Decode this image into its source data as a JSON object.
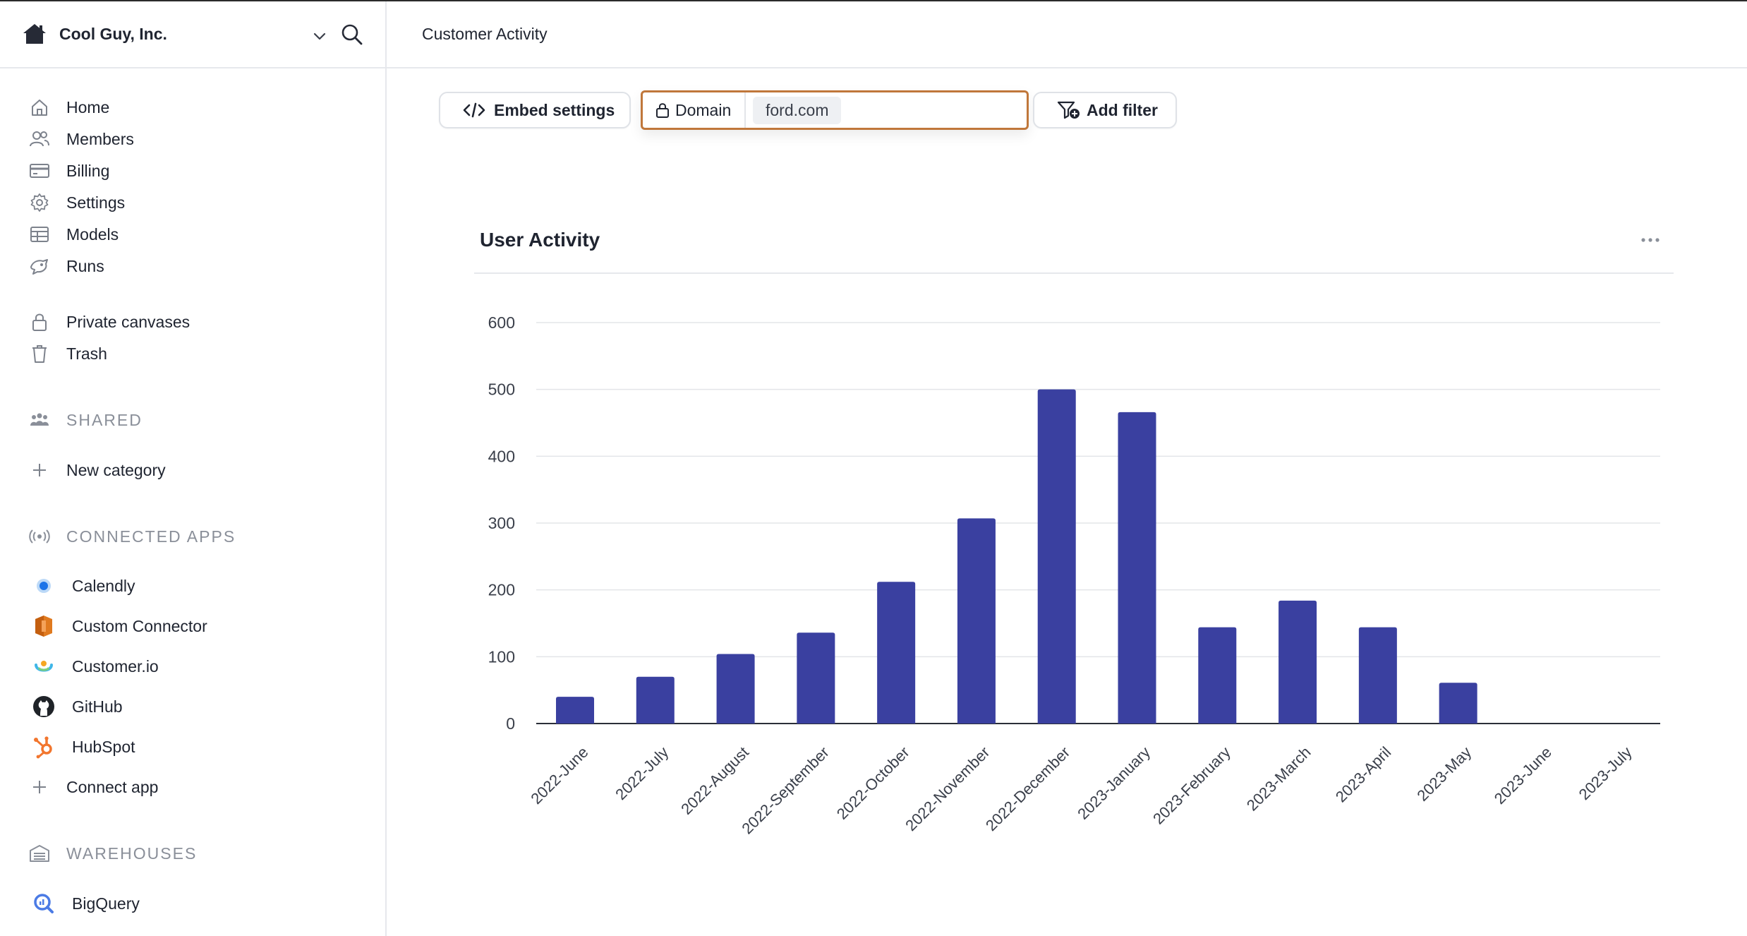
{
  "org": {
    "name": "Cool Guy, Inc.",
    "icon": "house-icon"
  },
  "nav": {
    "main": [
      {
        "label": "Home",
        "icon": "home-icon"
      },
      {
        "label": "Members",
        "icon": "members-icon"
      },
      {
        "label": "Billing",
        "icon": "credit-card-icon"
      },
      {
        "label": "Settings",
        "icon": "gear-icon"
      },
      {
        "label": "Models",
        "icon": "table-icon"
      },
      {
        "label": "Runs",
        "icon": "runs-icon"
      }
    ],
    "private": [
      {
        "label": "Private canvases",
        "icon": "lock-icon"
      },
      {
        "label": "Trash",
        "icon": "trash-icon"
      }
    ],
    "shared": {
      "header": "SHARED",
      "new_category": "New category"
    },
    "connected_apps": {
      "header": "CONNECTED APPS",
      "apps": [
        {
          "label": "Calendly",
          "icon": "calendly-icon"
        },
        {
          "label": "Custom Connector",
          "icon": "custom-connector-icon"
        },
        {
          "label": "Customer.io",
          "icon": "customerio-icon"
        },
        {
          "label": "GitHub",
          "icon": "github-icon"
        },
        {
          "label": "HubSpot",
          "icon": "hubspot-icon"
        }
      ],
      "connect_app": "Connect app"
    },
    "warehouses": {
      "header": "WAREHOUSES",
      "items": [
        {
          "label": "BigQuery",
          "icon": "bigquery-icon"
        }
      ]
    }
  },
  "header": {
    "title": "Customer Activity"
  },
  "toolbar": {
    "embed_label": "Embed settings",
    "filter_key": "Domain",
    "filter_value": "ford.com",
    "add_filter_label": "Add filter"
  },
  "colors": {
    "bar": "#3a40a0",
    "accent_border": "#c0773b"
  },
  "chart_data": {
    "type": "bar",
    "title": "User Activity",
    "categories": [
      "2022-June",
      "2022-July",
      "2022-August",
      "2022-September",
      "2022-October",
      "2022-November",
      "2022-December",
      "2023-January",
      "2023-February",
      "2023-March",
      "2023-April",
      "2023-May",
      "2023-June",
      "2023-July"
    ],
    "values": [
      40,
      70,
      104,
      136,
      212,
      307,
      500,
      466,
      144,
      184,
      144,
      61,
      0,
      0
    ],
    "ylim": [
      0,
      600
    ],
    "yticks": [
      0,
      100,
      200,
      300,
      400,
      500,
      600
    ],
    "xlabel": "",
    "ylabel": "",
    "grid": true
  }
}
